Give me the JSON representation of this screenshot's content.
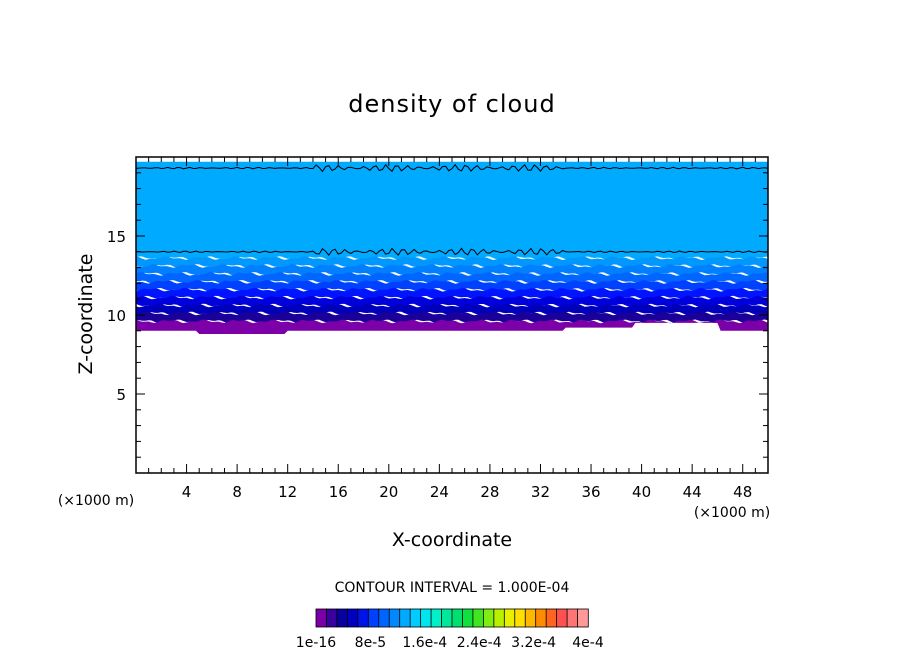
{
  "chart_data": {
    "type": "heatmap",
    "title": "density of cloud",
    "xlabel": "X-coordinate",
    "ylabel": "Z-coordinate",
    "x_units": "(×1000 m)",
    "z_units": "(×1000 m)",
    "xlim": [
      0,
      50
    ],
    "ylim": [
      0,
      20
    ],
    "x_ticks": [
      4,
      8,
      12,
      16,
      20,
      24,
      28,
      32,
      36,
      40,
      44,
      48
    ],
    "y_ticks": [
      5,
      10,
      15
    ],
    "contour_interval_label": "CONTOUR INTERVAL = 1.000E-04",
    "cloud_base_km": [
      {
        "x": 0,
        "z": 9.0
      },
      {
        "x": 4.5,
        "z": 9.0
      },
      {
        "x": 4.8,
        "z": 8.8
      },
      {
        "x": 11.5,
        "z": 8.8
      },
      {
        "x": 11.8,
        "z": 9.0
      },
      {
        "x": 33.5,
        "z": 9.0
      },
      {
        "x": 33.8,
        "z": 9.2
      },
      {
        "x": 39,
        "z": 9.2
      },
      {
        "x": 39.3,
        "z": 9.5
      },
      {
        "x": 46,
        "z": 9.5
      },
      {
        "x": 46.2,
        "z": 9.0
      },
      {
        "x": 50,
        "z": 9.0
      }
    ],
    "layers": [
      {
        "z_bottom": 9.0,
        "z_top": 9.6,
        "color": "#7b00a8"
      },
      {
        "z_bottom": 9.6,
        "z_top": 10.1,
        "color": "#1a0099"
      },
      {
        "z_bottom": 10.1,
        "z_top": 10.6,
        "color": "#0000bb"
      },
      {
        "z_bottom": 10.6,
        "z_top": 11.1,
        "color": "#0000dd"
      },
      {
        "z_bottom": 11.1,
        "z_top": 11.6,
        "color": "#0014ff"
      },
      {
        "z_bottom": 11.6,
        "z_top": 12.1,
        "color": "#0040ff"
      },
      {
        "z_bottom": 12.1,
        "z_top": 12.6,
        "color": "#0066ff"
      },
      {
        "z_bottom": 12.6,
        "z_top": 13.1,
        "color": "#0080ff"
      },
      {
        "z_bottom": 13.1,
        "z_top": 13.6,
        "color": "#0098ff"
      },
      {
        "z_bottom": 13.6,
        "z_top": 19.7,
        "color": "#00aaff"
      }
    ],
    "contour_lines_km": [
      14.0,
      19.3
    ],
    "colorbar": {
      "colors": [
        "#7a00a6",
        "#3a009e",
        "#0800a0",
        "#0000c0",
        "#0014e8",
        "#0040ff",
        "#0064ff",
        "#0088ff",
        "#00aaff",
        "#00ccff",
        "#00e6ee",
        "#00f0c8",
        "#00e89c",
        "#00e070",
        "#10e040",
        "#40e620",
        "#80ee10",
        "#b8f000",
        "#e8f000",
        "#ffe000",
        "#ffb800",
        "#ff8c00",
        "#ff6420",
        "#ff5050",
        "#ff7474",
        "#ff9898"
      ],
      "tick_labels": [
        "1e-16",
        "8e-5",
        "1.6e-4",
        "2.4e-4",
        "3.2e-4",
        "4e-4"
      ]
    }
  }
}
